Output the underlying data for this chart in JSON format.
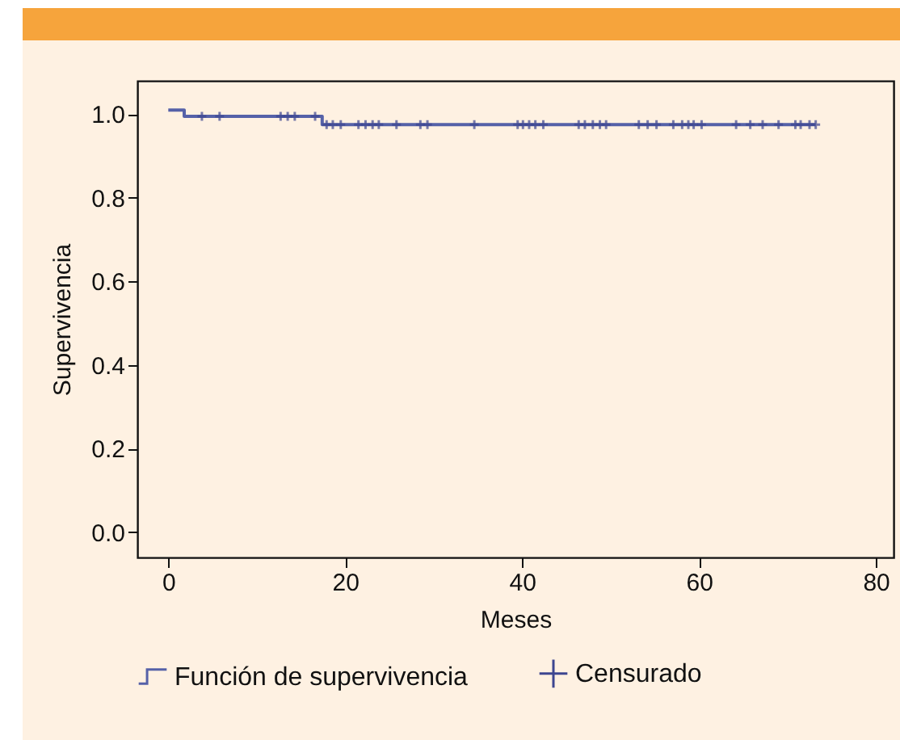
{
  "chart_data": {
    "type": "step",
    "xlabel": "Meses",
    "ylabel": "Supervivencia",
    "xlim": [
      -3.5,
      82
    ],
    "xticks": [
      0,
      20,
      40,
      60,
      80
    ],
    "ylim": [
      -0.06,
      1.08
    ],
    "yticks": [
      {
        "value": 0,
        "label": "0.0"
      },
      {
        "value": 0.2,
        "label": "0.2"
      },
      {
        "value": 0.4,
        "label": "0.4"
      },
      {
        "value": 0.6,
        "label": "0.6"
      },
      {
        "value": 0.8,
        "label": "0.8"
      },
      {
        "value": 1,
        "label": "1.0"
      }
    ],
    "grid": false,
    "legend": "bottom",
    "series": [
      {
        "name": "Función de supervivencia",
        "color": "#5561a8",
        "x": [
          0,
          1.8,
          17.4,
          73.2
        ],
        "values": [
          1.01,
          0.995,
          0.975,
          0.975
        ]
      },
      {
        "name": "Censurado",
        "type": "scatter",
        "marker": "cross",
        "color": "#3d4690",
        "x": [
          3.8,
          5.8,
          12.7,
          13.5,
          14.3,
          16.6,
          17.9,
          18.6,
          19.5,
          21.5,
          22.3,
          23.1,
          23.8,
          25.8,
          28.5,
          29.3,
          34.6,
          39.5,
          40.1,
          40.8,
          41.5,
          42.4,
          46.4,
          47.1,
          48.0,
          48.8,
          49.5,
          53.2,
          54.2,
          55.2,
          57.1,
          58.1,
          58.8,
          59.4,
          60.3,
          64.2,
          65.8,
          67.2,
          69.0,
          70.9,
          71.5,
          72.5,
          73.2
        ],
        "values": [
          0.995,
          0.995,
          0.995,
          0.995,
          0.995,
          0.995,
          0.975,
          0.975,
          0.975,
          0.975,
          0.975,
          0.975,
          0.975,
          0.975,
          0.975,
          0.975,
          0.975,
          0.975,
          0.975,
          0.975,
          0.975,
          0.975,
          0.975,
          0.975,
          0.975,
          0.975,
          0.975,
          0.975,
          0.975,
          0.975,
          0.975,
          0.975,
          0.975,
          0.975,
          0.975,
          0.975,
          0.975,
          0.975,
          0.975,
          0.975,
          0.975,
          0.975,
          0.975
        ]
      }
    ]
  }
}
